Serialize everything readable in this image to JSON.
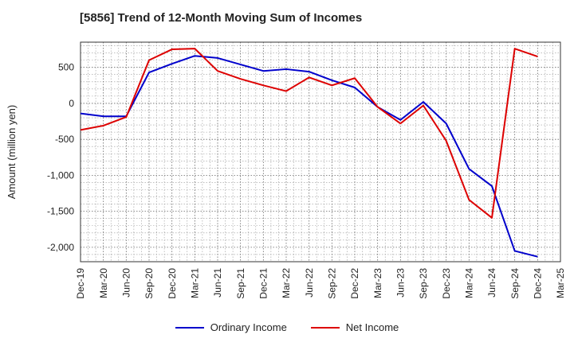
{
  "chart_data": {
    "type": "line",
    "title": "[5856]  Trend of 12-Month Moving Sum of Incomes",
    "ylabel": "Amount (million yen)",
    "xlabel": "",
    "categories": [
      "Dec-19",
      "Mar-20",
      "Jun-20",
      "Sep-20",
      "Dec-20",
      "Mar-21",
      "Jun-21",
      "Sep-21",
      "Dec-21",
      "Mar-22",
      "Jun-22",
      "Sep-22",
      "Dec-22",
      "Mar-23",
      "Jun-23",
      "Sep-23",
      "Dec-23",
      "Mar-24",
      "Jun-24",
      "Sep-24",
      "Dec-24",
      "Mar-25"
    ],
    "yticks": [
      500,
      0,
      -500,
      -1000,
      -1500,
      -2000
    ],
    "ytick_labels": [
      "500",
      "0",
      "-500",
      "-1,000",
      "-1,500",
      "-2,000"
    ],
    "ylim": [
      -2200,
      850
    ],
    "grid": true,
    "legend_position": "bottom",
    "series": [
      {
        "name": "Ordinary Income",
        "color": "#0000cc",
        "values": [
          -140,
          -180,
          -180,
          430,
          550,
          660,
          630,
          540,
          450,
          475,
          440,
          320,
          220,
          -50,
          -230,
          20,
          -280,
          -910,
          -1150,
          -2050,
          -2130,
          null
        ]
      },
      {
        "name": "Net Income",
        "color": "#dd0000",
        "values": [
          -370,
          -310,
          -190,
          600,
          750,
          760,
          450,
          340,
          250,
          170,
          360,
          250,
          350,
          -50,
          -280,
          -30,
          -520,
          -1340,
          -1590,
          760,
          650,
          null
        ]
      }
    ]
  }
}
